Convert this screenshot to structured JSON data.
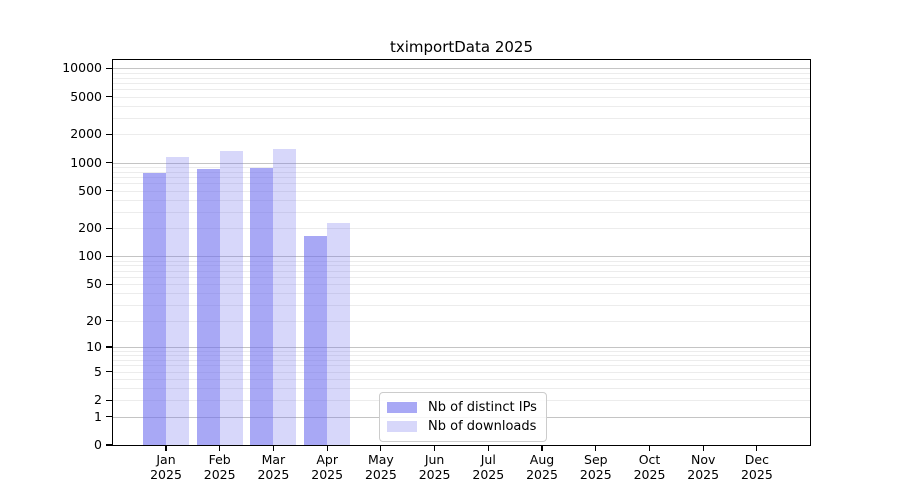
{
  "chart_data": {
    "type": "bar",
    "title": "tximportData 2025",
    "x_categories": [
      "Jan",
      "Feb",
      "Mar",
      "Apr",
      "May",
      "Jun",
      "Jul",
      "Aug",
      "Sep",
      "Oct",
      "Nov",
      "Dec"
    ],
    "x_year": "2025",
    "series": [
      {
        "name": "Nb of distinct IPs",
        "color": "#6e6eee",
        "alpha": 0.6,
        "values": [
          780,
          860,
          880,
          167,
          0,
          0,
          0,
          0,
          0,
          0,
          0,
          0
        ]
      },
      {
        "name": "Nb of downloads",
        "color": "#6e6eee",
        "alpha": 0.28,
        "values": [
          1150,
          1330,
          1400,
          225,
          0,
          0,
          0,
          0,
          0,
          0,
          0,
          0
        ]
      }
    ],
    "y_scale": "log10(value+1)",
    "y_ticks": [
      0,
      1,
      2,
      5,
      10,
      20,
      50,
      100,
      200,
      500,
      1000,
      2000,
      5000,
      10000
    ],
    "y_max": 12280,
    "ylim": [
      0,
      12280
    ],
    "grid": {
      "orientation": "horizontal",
      "major_lines": [
        1,
        10,
        100,
        1000,
        10000
      ],
      "major_color": "#c4c4c4",
      "minor_color": "#ececec"
    },
    "legend": {
      "position": "lower center",
      "entries": [
        "Nb of distinct IPs",
        "Nb of downloads"
      ]
    }
  }
}
